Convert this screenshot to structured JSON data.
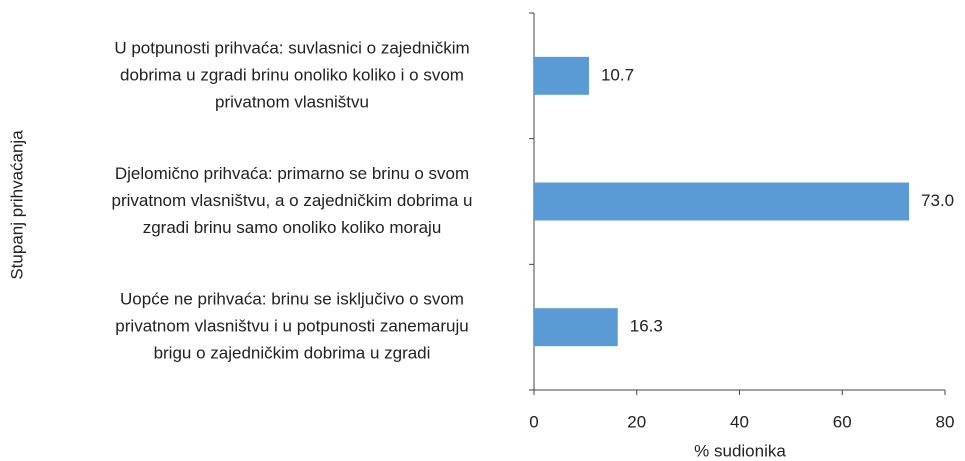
{
  "chart_data": {
    "type": "barh",
    "categories": [
      [
        "U potpunosti prihvaća: suvlasnici o zajedničkim",
        "dobrima u zgradi brinu onoliko koliko i o svom",
        "privatnom vlasništvu"
      ],
      [
        "Djelomično prihvaća: primarno se brinu o svom",
        "privatnom vlasništvu, a o zajedničkim dobrima u",
        "zgradi brinu samo onoliko koliko moraju"
      ],
      [
        "Uopće ne prihvaća: brinu se isključivo o svom",
        "privatnom vlasništvu i u potpunosti zanemaruju",
        "brigu o zajedničkim dobrima u zgradi"
      ]
    ],
    "values": [
      10.7,
      73.0,
      16.3
    ],
    "value_labels": [
      "10.7",
      "73.0",
      "16.3"
    ],
    "color": "#5b9bd5",
    "xlim": [
      0,
      80
    ],
    "xticks": [
      0,
      20,
      40,
      60,
      80
    ],
    "x_label": "% sudionika",
    "y_label": "Stupanj prihvaćanja"
  }
}
